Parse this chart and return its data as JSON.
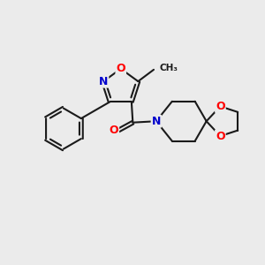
{
  "background_color": "#ebebeb",
  "bond_color": "#1a1a1a",
  "bond_width": 1.5,
  "atom_colors": {
    "O": "#ff0000",
    "N": "#0000cc",
    "C": "#1a1a1a"
  }
}
